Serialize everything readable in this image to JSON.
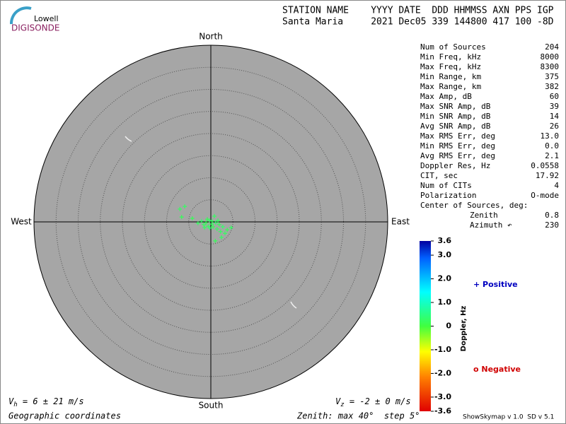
{
  "logo": {
    "top": "Lowell",
    "bottom": "DIGISONDE"
  },
  "header": {
    "line1": "STATION NAME    YYYY DATE  DDD HHMMSS AXN PPS IGP",
    "line2": "Santa Maria     2021 Dec05 339 144800 417 100 -8D"
  },
  "directions": {
    "north": "North",
    "south": "South",
    "east": "East",
    "west": "West"
  },
  "rings": {
    "max": 40,
    "step": 5
  },
  "sources": [
    {
      "east": -7.0,
      "north": 2.9,
      "doppler": 0.4
    },
    {
      "east": -5.9,
      "north": 3.5,
      "doppler": 0.4
    },
    {
      "east": -6.6,
      "north": 1.1,
      "doppler": 0.3
    },
    {
      "east": -4.2,
      "north": 0.8,
      "doppler": 0.3
    },
    {
      "east": -2.9,
      "north": -0.3,
      "doppler": 0.4
    },
    {
      "east": -2.1,
      "north": 0.2,
      "doppler": 0.5
    },
    {
      "east": -1.6,
      "north": -0.6,
      "doppler": 0.4
    },
    {
      "east": -1.1,
      "north": -0.2,
      "doppler": 0.3
    },
    {
      "east": -0.6,
      "north": -1.0,
      "doppler": 0.4
    },
    {
      "east": -0.3,
      "north": 0.3,
      "doppler": 0.5
    },
    {
      "east": 0.2,
      "north": -0.5,
      "doppler": 0.4
    },
    {
      "east": 0.5,
      "north": -1.1,
      "doppler": 0.3
    },
    {
      "east": 0.8,
      "north": 1.3,
      "doppler": 0.4
    },
    {
      "east": 1.1,
      "north": -0.2,
      "doppler": 0.5
    },
    {
      "east": 1.4,
      "north": -1.6,
      "doppler": 0.4
    },
    {
      "east": 1.9,
      "north": -0.6,
      "doppler": 0.3
    },
    {
      "east": 2.2,
      "north": -2.2,
      "doppler": 0.4
    },
    {
      "east": 2.7,
      "north": -1.1,
      "doppler": 0.5
    },
    {
      "east": 3.2,
      "north": -2.6,
      "doppler": 0.4
    },
    {
      "east": 3.7,
      "north": -1.8,
      "doppler": 0.3
    },
    {
      "east": 4.6,
      "north": -1.3,
      "doppler": 0.4
    },
    {
      "east": 2.4,
      "north": -3.5,
      "doppler": 0.4
    },
    {
      "east": 1.0,
      "north": -4.3,
      "doppler": 0.3
    },
    {
      "east": -0.2,
      "north": -1.4,
      "doppler": 0.5
    },
    {
      "east": -1.4,
      "north": -1.3,
      "doppler": 0.4
    },
    {
      "east": -0.8,
      "north": 0.6,
      "doppler": 0.3
    },
    {
      "east": 0.3,
      "north": 0.2,
      "doppler": 0.4
    },
    {
      "east": 1.6,
      "north": 0.3,
      "doppler": 0.4
    }
  ],
  "stats": {
    "rows": [
      [
        "Num of Sources",
        "204"
      ],
      [
        "Min Freq, kHz",
        "8000"
      ],
      [
        "Max Freq, kHz",
        "8300"
      ],
      [
        "Min Range, km",
        "375"
      ],
      [
        "Max Range, km",
        "382"
      ],
      [
        "Max Amp, dB",
        "60"
      ],
      [
        "Max SNR Amp, dB",
        "39"
      ],
      [
        "Min SNR Amp, dB",
        "14"
      ],
      [
        "Avg SNR Amp, dB",
        "26"
      ],
      [
        "Max RMS Err, deg",
        "13.0"
      ],
      [
        "Min RMS Err, deg",
        "0.0"
      ],
      [
        "Avg RMS Err, deg",
        "2.1"
      ],
      [
        "Doppler Res, Hz",
        "0.0558"
      ],
      [
        "CIT, sec",
        "17.92"
      ],
      [
        "Num of CITs",
        "4"
      ],
      [
        "Polarization",
        "O-mode"
      ]
    ],
    "center_title": "Center of Sources, deg:",
    "center_rows": [
      [
        "Zenith",
        "0.8"
      ],
      [
        "Azimuth ↶",
        "230"
      ]
    ]
  },
  "colorbar": {
    "title": "Doppler, Hz",
    "lim": [
      -3.6,
      3.6
    ],
    "ticks": [
      3.6,
      {
        "value": 3,
        "label": "3.0"
      },
      {
        "value": 2,
        "label": "2.0"
      },
      {
        "value": 1,
        "label": "1.0"
      },
      0,
      {
        "value": -1,
        "label": "-1.0"
      },
      {
        "value": -2,
        "label": "-2.0"
      },
      {
        "value": -3,
        "label": "-3.0"
      },
      -3.6
    ]
  },
  "legend": {
    "positive": "+ Positive",
    "negative": "o Negative"
  },
  "footer": {
    "vh_symbol": "V",
    "vh_sub": "h",
    "vh_text": " = 6 ± 21 m/s",
    "vz_symbol": "V",
    "vz_sub": "z",
    "vz_text": " = -2 ± 0 m/s",
    "coords": "Geographic coordinates",
    "zenith": "Zenith: max 40°  step 5°",
    "version": "ShowSkymap v 1.0  SD v 5.1"
  }
}
